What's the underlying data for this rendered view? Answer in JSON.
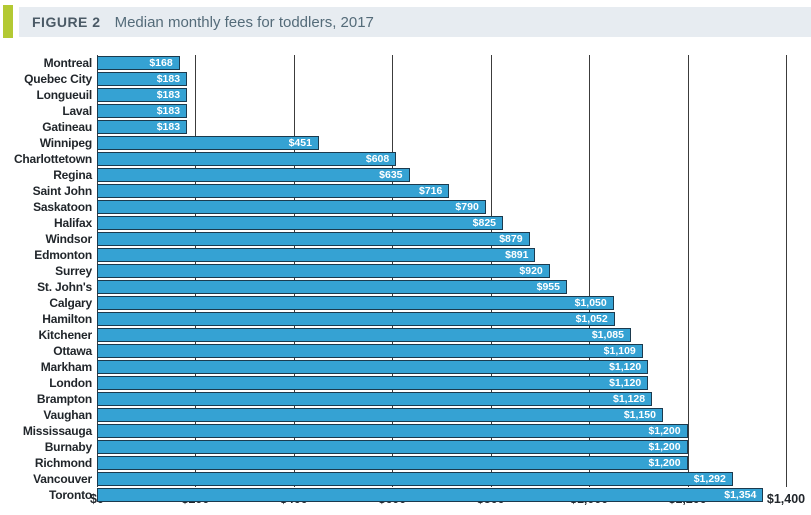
{
  "header": {
    "figure_label": "FIGURE 2",
    "title": "Median monthly fees for toddlers, 2017"
  },
  "chart_data": {
    "type": "bar",
    "orientation": "horizontal",
    "title": "Median monthly fees for toddlers, 2017",
    "categories": [
      "Montreal",
      "Quebec City",
      "Longueuil",
      "Laval",
      "Gatineau",
      "Winnipeg",
      "Charlottetown",
      "Regina",
      "Saint John",
      "Saskatoon",
      "Halifax",
      "Windsor",
      "Edmonton",
      "Surrey",
      "St. John's",
      "Calgary",
      "Hamilton",
      "Kitchener",
      "Ottawa",
      "Markham",
      "London",
      "Brampton",
      "Vaughan",
      "Mississauga",
      "Burnaby",
      "Richmond",
      "Vancouver",
      "Toronto"
    ],
    "values": [
      168,
      183,
      183,
      183,
      183,
      451,
      608,
      635,
      716,
      790,
      825,
      879,
      891,
      920,
      955,
      1050,
      1052,
      1085,
      1109,
      1120,
      1120,
      1128,
      1150,
      1200,
      1200,
      1200,
      1292,
      1354
    ],
    "value_labels": [
      "$168",
      "$183",
      "$183",
      "$183",
      "$183",
      "$451",
      "$608",
      "$635",
      "$716",
      "$790",
      "$825",
      "$879",
      "$891",
      "$920",
      "$955",
      "$1,050",
      "$1,052",
      "$1,085",
      "$1,109",
      "$1,120",
      "$1,120",
      "$1,128",
      "$1,150",
      "$1,200",
      "$1,200",
      "$1,200",
      "$1,292",
      "$1,354"
    ],
    "xlabel": "",
    "ylabel": "",
    "xlim": [
      0,
      1400
    ],
    "x_tick_values": [
      0,
      200,
      400,
      600,
      800,
      1000,
      1200,
      1400
    ],
    "x_tick_labels": [
      "$0",
      "$200",
      "$400",
      "$600",
      "$800",
      "$1,000",
      "$1,200",
      "$1,400"
    ],
    "grid": "vertical",
    "legend": "none"
  },
  "colors": {
    "accent_green": "#b3c933",
    "header_bg": "#e7ecf1",
    "figure_label_text": "#4b5a66",
    "title_text": "#546b79",
    "bar_fill": "#35a2d3",
    "bar_border": "#1b3a4e",
    "gridline": "#3c3c3c",
    "axis_text": "#21262b",
    "category_text": "#21262b",
    "value_text": "#ffffff"
  }
}
